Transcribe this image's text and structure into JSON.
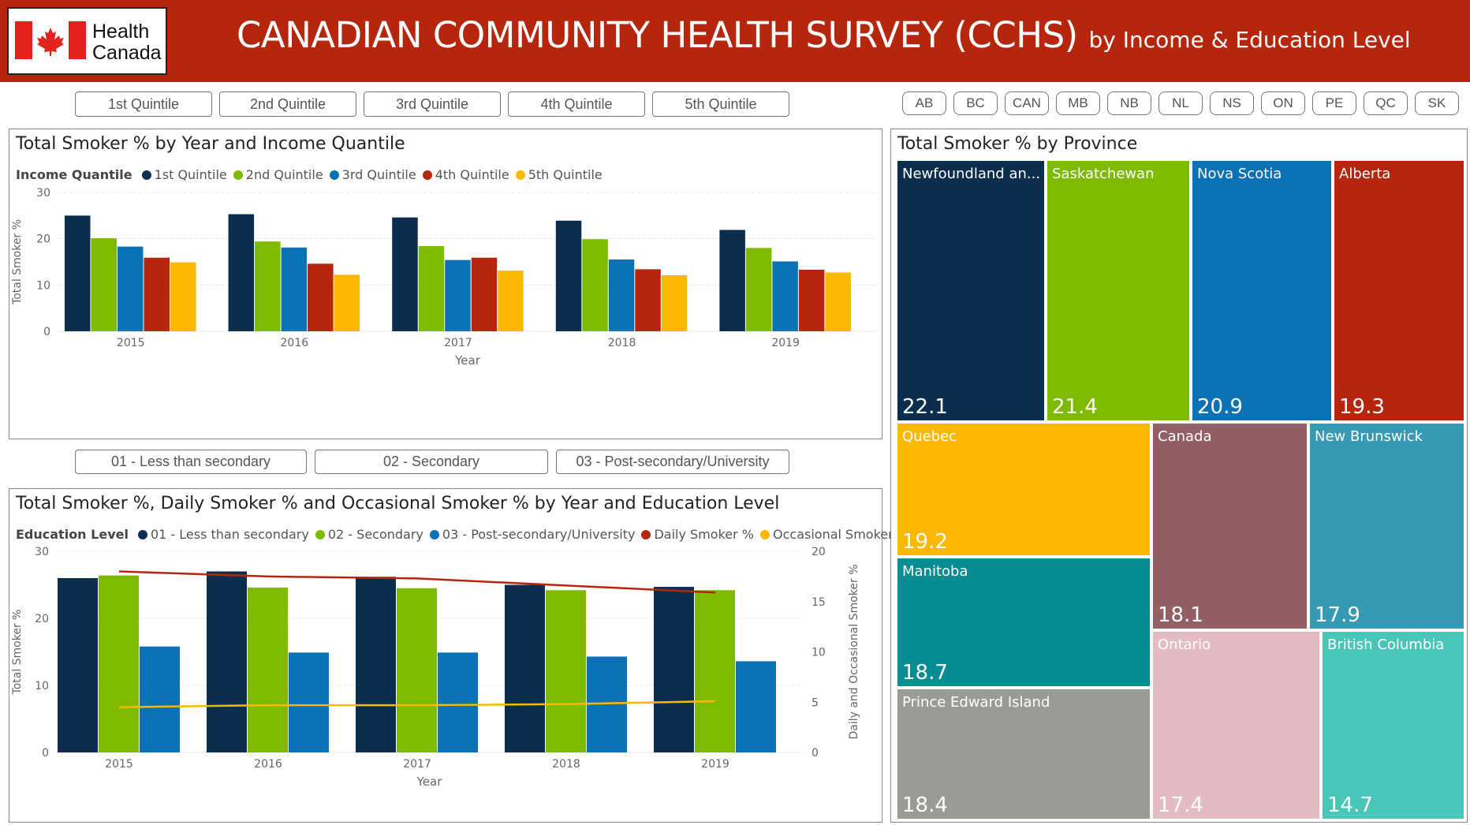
{
  "header": {
    "logo_line1": "Health",
    "logo_line2": "Canada",
    "title": "CANADIAN COMMUNITY HEALTH SURVEY (CCHS)",
    "subtitle": "by Income & Education Level"
  },
  "colors": {
    "header_bg": "#b6260c",
    "navy": "#0b2e4f",
    "green": "#7dba00",
    "blue": "#0b72b5",
    "red": "#b6260c",
    "yellow": "#fbb800"
  },
  "quintile_buttons": [
    "1st Quintile",
    "2nd Quintile",
    "3rd Quintile",
    "4th Quintile",
    "5th Quintile"
  ],
  "province_buttons": [
    "AB",
    "BC",
    "CAN",
    "MB",
    "NB",
    "NL",
    "NS",
    "ON",
    "PE",
    "QC",
    "SK"
  ],
  "education_buttons": [
    "01 - Less than secondary",
    "02 - Secondary",
    "03 - Post-secondary/University"
  ],
  "chart_data": [
    {
      "type": "bar",
      "title": "Total Smoker % by Year and Income Quantile",
      "legend_title": "Income Quantile",
      "xlabel": "Year",
      "ylabel": "Total Smoker %",
      "ylim": [
        0,
        30
      ],
      "yticks": [
        0,
        10,
        20,
        30
      ],
      "categories": [
        "2015",
        "2016",
        "2017",
        "2018",
        "2019"
      ],
      "series": [
        {
          "name": "1st Quintile",
          "color": "#0b2e4f",
          "values": [
            25.0,
            25.3,
            24.6,
            23.9,
            21.9
          ]
        },
        {
          "name": "2nd Quintile",
          "color": "#7dba00",
          "values": [
            20.1,
            19.4,
            18.4,
            19.9,
            18.0
          ]
        },
        {
          "name": "3rd Quintile",
          "color": "#0b72b5",
          "values": [
            18.3,
            18.1,
            15.4,
            15.5,
            15.1
          ]
        },
        {
          "name": "4th Quintile",
          "color": "#b6260c",
          "values": [
            15.9,
            14.6,
            15.9,
            13.4,
            13.3
          ]
        },
        {
          "name": "5th Quintile",
          "color": "#fbb800",
          "values": [
            14.9,
            12.2,
            13.1,
            12.1,
            12.7
          ]
        }
      ],
      "grid": true,
      "legend_position": "top-left"
    },
    {
      "type": "bar",
      "title": "Total Smoker %, Daily Smoker % and Occasional Smoker % by Year and Education Level",
      "legend_title": "Education Level",
      "xlabel": "Year",
      "ylabel": "Total Smoker %",
      "y2label": "Daily and Occasional Smoker %",
      "ylim": [
        0,
        30
      ],
      "yticks": [
        0,
        10,
        20,
        30
      ],
      "y2lim": [
        0,
        20
      ],
      "y2ticks": [
        0,
        5,
        10,
        15,
        20
      ],
      "categories": [
        "2015",
        "2016",
        "2017",
        "2018",
        "2019"
      ],
      "series": [
        {
          "name": "01 - Less than secondary",
          "color": "#0b2e4f",
          "values": [
            26.0,
            27.0,
            26.2,
            25.0,
            24.7
          ]
        },
        {
          "name": "02 - Secondary",
          "color": "#7dba00",
          "values": [
            26.4,
            24.6,
            24.5,
            24.2,
            24.2
          ]
        },
        {
          "name": "03 - Post-secondary/University",
          "color": "#0b72b5",
          "values": [
            15.8,
            14.9,
            14.9,
            14.3,
            13.6
          ]
        }
      ],
      "lines": [
        {
          "name": "Daily Smoker %",
          "color": "#b6260c",
          "axis": "y2",
          "values": [
            18.0,
            17.5,
            17.3,
            16.6,
            15.9
          ]
        },
        {
          "name": "Occasional Smoker %",
          "color": "#fbb800",
          "axis": "y2",
          "values": [
            4.5,
            4.7,
            4.7,
            4.8,
            5.1
          ]
        }
      ],
      "grid": true,
      "legend_position": "top-left"
    },
    {
      "type": "treemap",
      "title": "Total Smoker % by Province",
      "items": [
        {
          "name": "Newfoundland an...",
          "value": "22.1",
          "color": "#0b2e4f",
          "name_color": "#ffffff"
        },
        {
          "name": "Saskatchewan",
          "value": "21.4",
          "color": "#7dba00",
          "name_color": "#ffffff"
        },
        {
          "name": "Nova Scotia",
          "value": "20.9",
          "color": "#0b72b5",
          "name_color": "#ffffff"
        },
        {
          "name": "Alberta",
          "value": "19.3",
          "color": "#b6260c",
          "name_color": "#ffffff"
        },
        {
          "name": "Quebec",
          "value": "19.2",
          "color": "#fbb800",
          "name_color": "#ffffff"
        },
        {
          "name": "Canada",
          "value": "18.1",
          "color": "#915f64",
          "name_color": "#ffffff"
        },
        {
          "name": "New Brunswick",
          "value": "17.9",
          "color": "#3799b3",
          "name_color": "#ffffff"
        },
        {
          "name": "Manitoba",
          "value": "18.7",
          "color": "#058d92",
          "name_color": "#ffffff"
        },
        {
          "name": "Prince Edward Island",
          "value": "18.4",
          "color": "#9c9a96",
          "name_color": "#ffffff"
        },
        {
          "name": "Ontario",
          "value": "17.4",
          "color": "#e2bcc2",
          "name_color": "#ffffff"
        },
        {
          "name": "British Columbia",
          "value": "14.7",
          "color": "#4ac6b9",
          "name_color": "#ffffff"
        }
      ]
    }
  ]
}
